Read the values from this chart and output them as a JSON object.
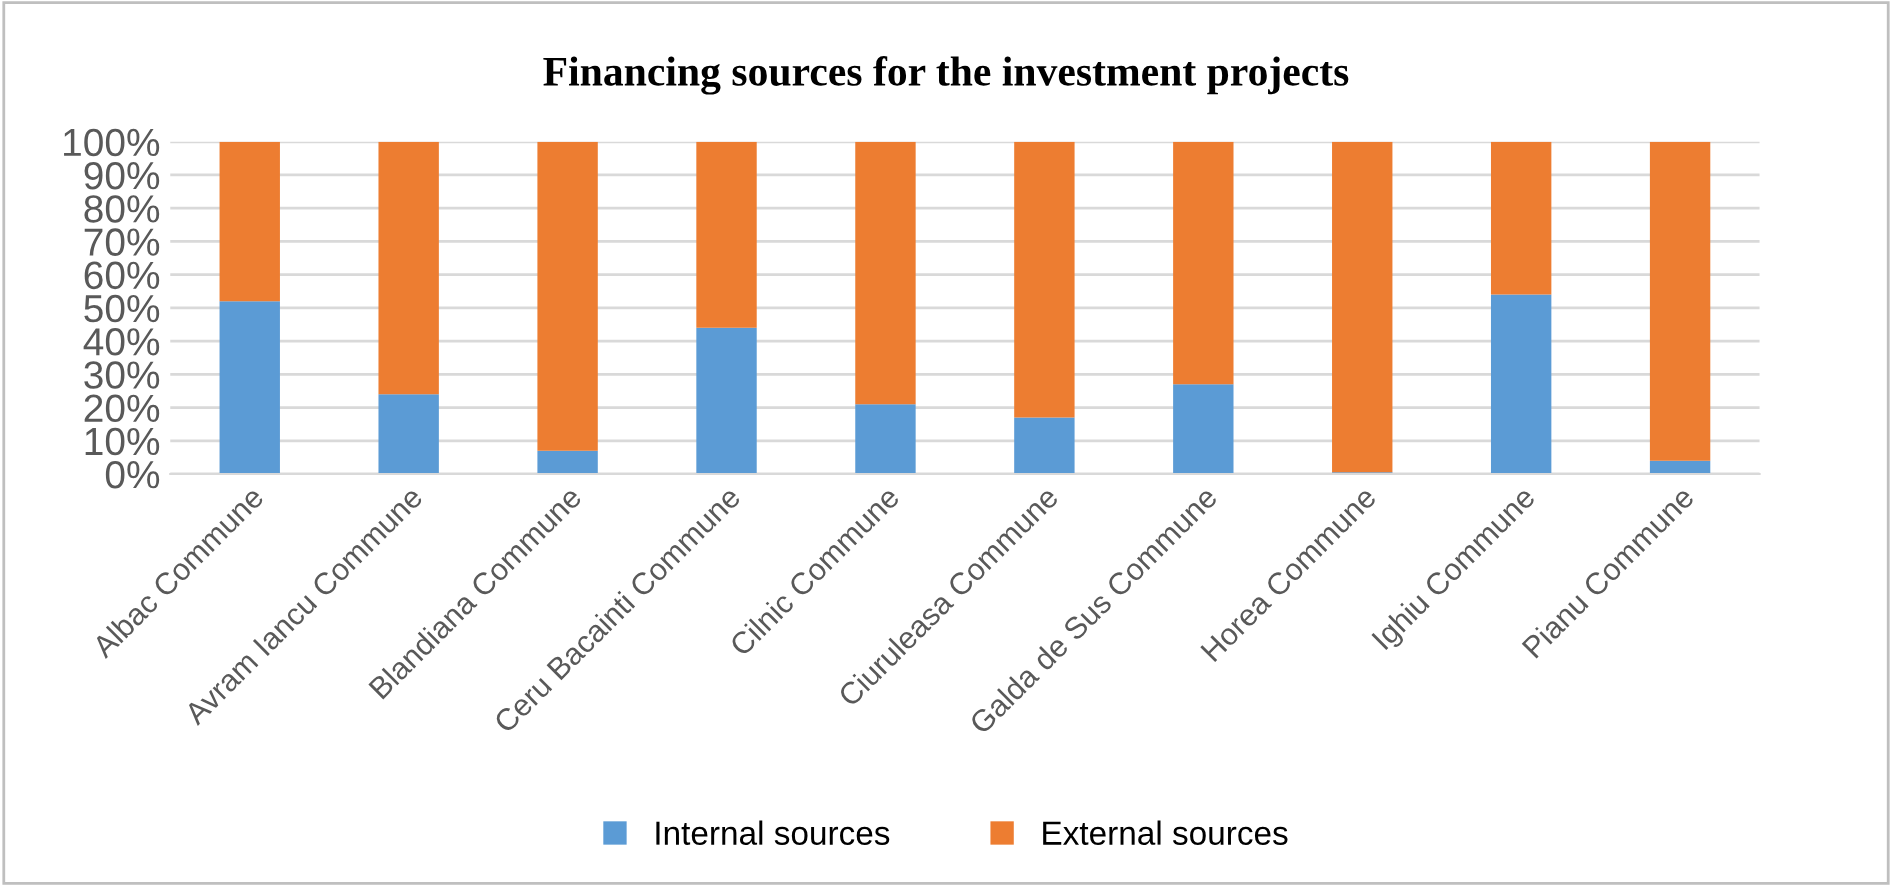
{
  "chart_data": {
    "type": "bar",
    "title": "Financing sources for the investment projects",
    "categories": [
      "Albac Commune",
      "Avram Iancu Commune",
      "Blandiana Commune",
      "Ceru Bacainti Commune",
      "Cilnic Commune",
      "Ciuruleasa Commune",
      "Galda de Sus Commune",
      "Horea Commune",
      "Ighiu Commune",
      "Pianu Commune"
    ],
    "series": [
      {
        "name": "Internal sources",
        "color": "#5b9bd5",
        "values": [
          52,
          24,
          7,
          44,
          21,
          17,
          27,
          0.5,
          54,
          4
        ]
      },
      {
        "name": "External sources",
        "color": "#ed7d31",
        "values": [
          48,
          76,
          93,
          56,
          79,
          83,
          73,
          99.5,
          46,
          96
        ]
      }
    ],
    "stacked": true,
    "ylim": [
      0,
      100
    ],
    "yticks": [
      {
        "value": 0,
        "label": "0%"
      },
      {
        "value": 10,
        "label": "10%"
      },
      {
        "value": 20,
        "label": "20%"
      },
      {
        "value": 30,
        "label": "30%"
      },
      {
        "value": 40,
        "label": "40%"
      },
      {
        "value": 50,
        "label": "50%"
      },
      {
        "value": 60,
        "label": "60%"
      },
      {
        "value": 70,
        "label": "70%"
      },
      {
        "value": 80,
        "label": "80%"
      },
      {
        "value": 90,
        "label": "90%"
      },
      {
        "value": 100,
        "label": "100%"
      }
    ],
    "grid": "y",
    "legend": "bottom"
  }
}
